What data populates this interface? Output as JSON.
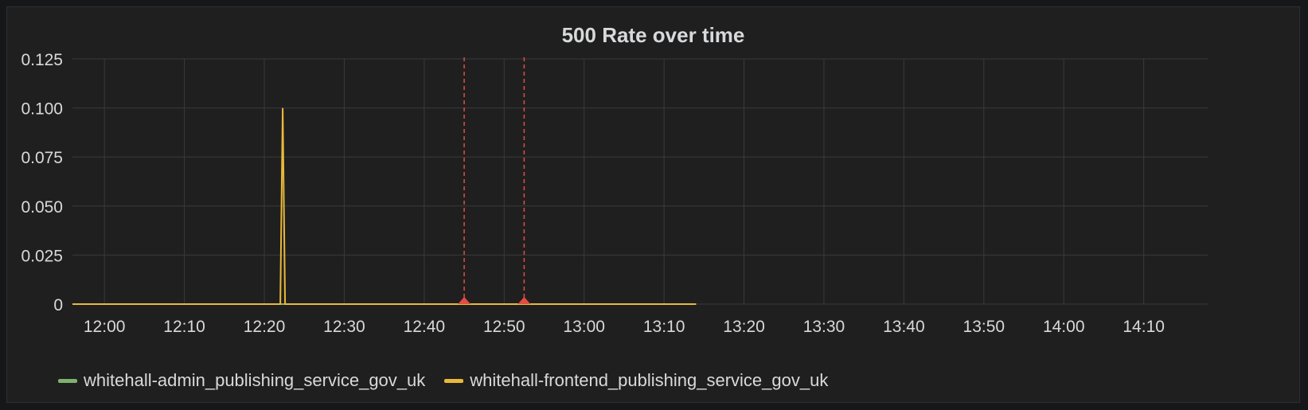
{
  "panel": {
    "title": "500 Rate over time"
  },
  "chart_data": {
    "type": "line",
    "title": "500 Rate over time",
    "xlabel": "",
    "ylabel": "",
    "ylim": [
      0,
      0.125
    ],
    "xlim": [
      "11:56",
      "14:18"
    ],
    "y_ticks": [
      "0",
      "0.025",
      "0.050",
      "0.075",
      "0.100",
      "0.125"
    ],
    "x_ticks": [
      "12:00",
      "12:10",
      "12:20",
      "12:30",
      "12:40",
      "12:50",
      "13:00",
      "13:10",
      "13:20",
      "13:30",
      "13:40",
      "13:50",
      "14:00",
      "14:10"
    ],
    "grid": true,
    "legend_position": "bottom-left",
    "series": [
      {
        "name": "whitehall-admin_publishing_service_gov_uk",
        "color": "#7eb26d",
        "points": [
          [
            "11:56",
            0
          ],
          [
            "13:14",
            0
          ]
        ]
      },
      {
        "name": "whitehall-frontend_publishing_service_gov_uk",
        "color": "#eab839",
        "points": [
          [
            "11:56",
            0
          ],
          [
            "12:22",
            0
          ],
          [
            "12:22.3",
            0.1
          ],
          [
            "12:22.6",
            0
          ],
          [
            "13:14",
            0
          ]
        ]
      }
    ],
    "annotations": [
      {
        "time": "12:45",
        "color": "#e24d42"
      },
      {
        "time": "12:52.5",
        "color": "#e24d42"
      }
    ]
  }
}
